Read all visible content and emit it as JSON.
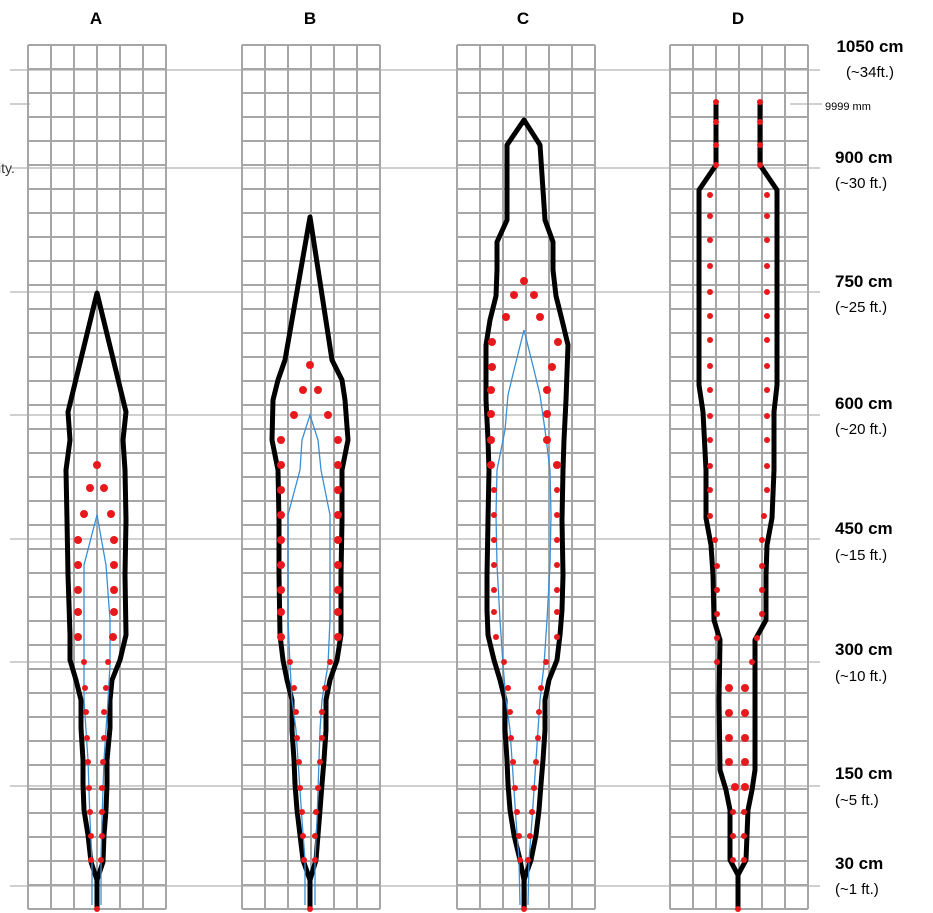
{
  "edge_fragment": "ity.",
  "columns": [
    {
      "label": "A"
    },
    {
      "label": "B"
    },
    {
      "label": "C"
    },
    {
      "label": "D"
    }
  ],
  "scale": {
    "top_main": "1050 cm",
    "top_sub": "(~34ft.)",
    "limit_label": "9999 mm",
    "marks": [
      {
        "main": "900 cm",
        "sub": "(~30 ft.)"
      },
      {
        "main": "750 cm",
        "sub": "(~25 ft.)"
      },
      {
        "main": "600 cm",
        "sub": "(~20 ft.)"
      },
      {
        "main": "450 cm",
        "sub": "(~15 ft.)"
      },
      {
        "main": "300 cm",
        "sub": "(~10 ft.)"
      },
      {
        "main": "150 cm",
        "sub": "(~5 ft.)"
      },
      {
        "main": "30 cm",
        "sub": "(~1 ft.)"
      }
    ]
  },
  "colors": {
    "grid": "#a6a6a6",
    "outline": "#000000",
    "inner_line": "#3b8fd6",
    "dots": "#e8191c",
    "ref_lines": "#a0a0a0"
  }
}
